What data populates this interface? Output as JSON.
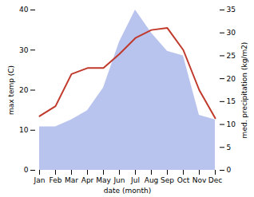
{
  "chart_data": {
    "type": "line",
    "categories": [
      "Jan",
      "Feb",
      "Mar",
      "Apr",
      "May",
      "Jun",
      "Jul",
      "Aug",
      "Sep",
      "Oct",
      "Nov",
      "Dec"
    ],
    "xlabel": "date (month)",
    "ylabel": "max temp (C)",
    "y2label": "med. precipitation (kg/m2)",
    "series": [
      {
        "name": "med. precipitation (kg/m2)",
        "type": "area",
        "axis": "y2",
        "color": "#b8c4ee",
        "values": [
          9.5,
          9.5,
          11.0,
          13.0,
          18.0,
          28.0,
          35.0,
          30.0,
          26.0,
          25.0,
          12.0,
          11.0
        ]
      },
      {
        "name": "max temp (C)",
        "type": "line",
        "color": "#c0392b",
        "values": [
          13.5,
          16.0,
          24.0,
          25.5,
          25.5,
          29.0,
          33.0,
          35.0,
          35.5,
          30.0,
          20.0,
          13.0
        ]
      }
    ],
    "ylim": [
      0,
      40
    ],
    "yticks": [
      0,
      10,
      20,
      30,
      40
    ],
    "y2lim": [
      0,
      35
    ],
    "y2ticks": [
      0,
      5,
      10,
      15,
      20,
      25,
      30,
      35
    ]
  }
}
